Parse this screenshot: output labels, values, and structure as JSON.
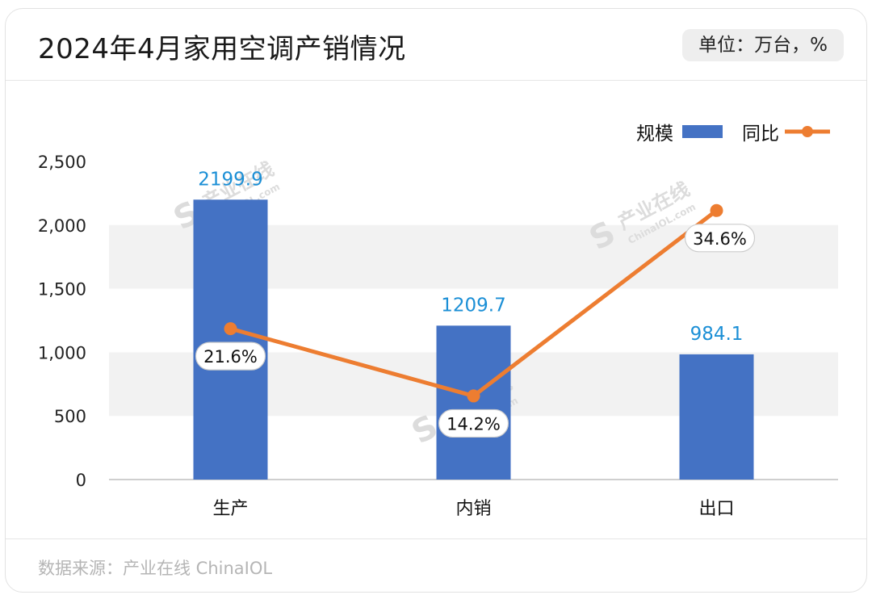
{
  "header": {
    "title": "2024年4月家用空调产销情况",
    "unit": "单位：万台，%"
  },
  "footer": {
    "source": "数据来源：产业在线 ChinaIOL"
  },
  "watermark": {
    "text": "产业在线",
    "subtext": "ChinaIOL.com"
  },
  "colors": {
    "bar": "#4472c4",
    "line": "#ed7d31",
    "bar_label": "#1b8fd6",
    "band": "#f2f2f2"
  },
  "chart_data": {
    "type": "bar",
    "categories": [
      "生产",
      "内销",
      "出口"
    ],
    "series": [
      {
        "name": "规模",
        "type": "bar",
        "axis": "left",
        "values": [
          2199.9,
          1209.7,
          984.1
        ],
        "labels": [
          "2199.9",
          "1209.7",
          "984.1"
        ]
      },
      {
        "name": "同比",
        "type": "line",
        "axis": "right",
        "values": [
          21.6,
          14.2,
          34.6
        ],
        "labels": [
          "21.6%",
          "14.2%",
          "34.6%"
        ]
      }
    ],
    "ylim": [
      0,
      2500
    ],
    "yticks": [
      0,
      500,
      1000,
      1500,
      2000,
      2500
    ],
    "ytick_labels": [
      "0",
      "500",
      "1,000",
      "1,500",
      "2,000",
      "2,500"
    ],
    "legend": "top-right",
    "grid": "alternating bands"
  }
}
